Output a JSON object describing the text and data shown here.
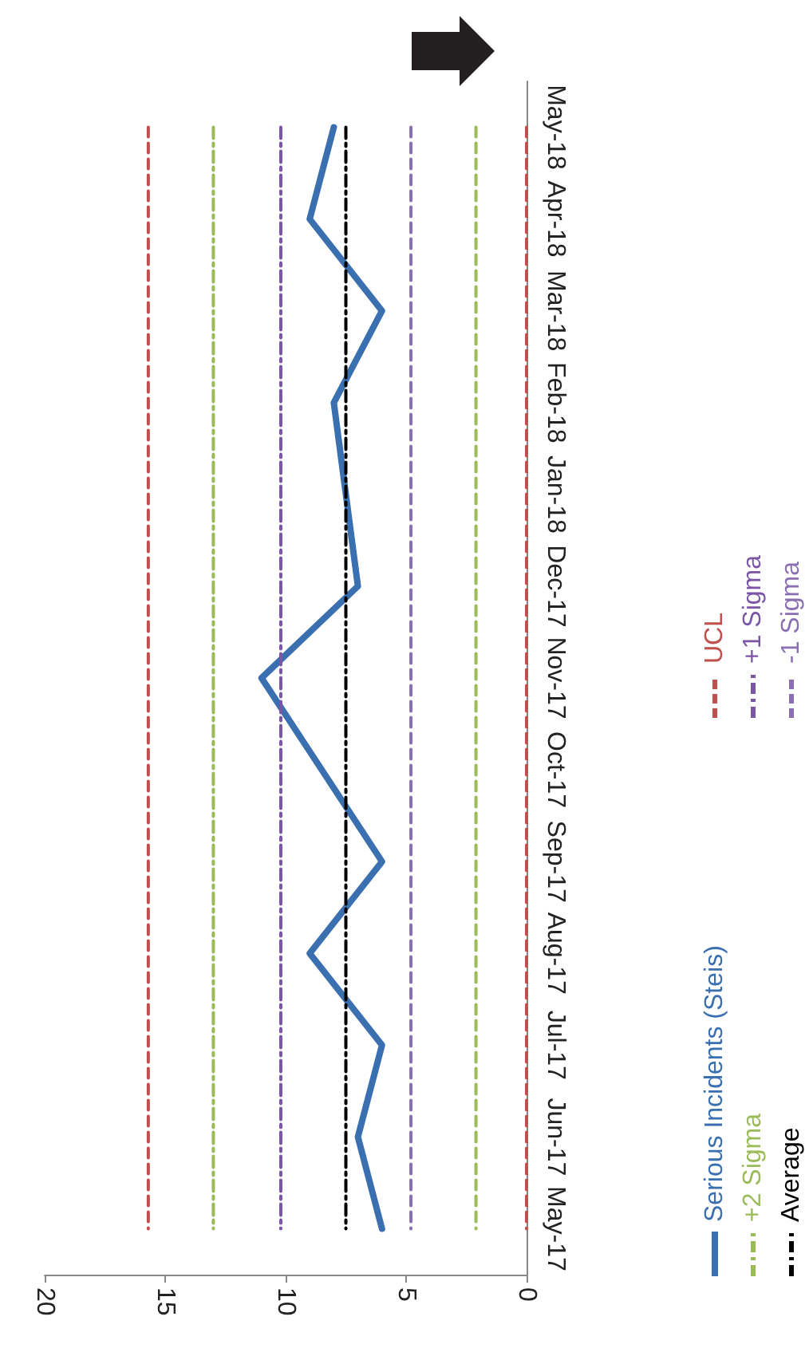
{
  "chart_data": {
    "type": "line",
    "orientation": "horizontal",
    "categories": [
      "May-18",
      "Apr-18",
      "Mar-18",
      "Feb-18",
      "Jan-18",
      "Dec-17",
      "Nov-17",
      "Oct-17",
      "Sep-17",
      "Aug-17",
      "Jul-17",
      "Jun-17",
      "May-17"
    ],
    "xlim": [
      20,
      0
    ],
    "xticks": [
      20,
      15,
      10,
      5,
      0
    ],
    "grid": false,
    "legend": "right",
    "marker": "none",
    "series": [
      {
        "name": "Serious Incidents (Steis)",
        "color": "#3a6fb0",
        "line_style": "solid",
        "values": [
          8,
          9,
          6,
          8,
          7.5,
          7,
          11,
          8.5,
          6,
          9,
          6,
          7,
          6
        ]
      },
      {
        "name": "UCL",
        "color": "#c0504d",
        "line_style": "dashed",
        "values": [
          15.7,
          15.7,
          15.7,
          15.7,
          15.7,
          15.7,
          15.7,
          15.7,
          15.7,
          15.7,
          15.7,
          15.7,
          15.7
        ]
      },
      {
        "name": "+2 Sigma",
        "color": "#9bbb59",
        "line_style": "dashdot",
        "values": [
          13,
          13,
          13,
          13,
          13,
          13,
          13,
          13,
          13,
          13,
          13,
          13,
          13
        ]
      },
      {
        "name": "+1 Sigma",
        "color": "#7b55a6",
        "line_style": "dashdot",
        "values": [
          10.2,
          10.2,
          10.2,
          10.2,
          10.2,
          10.2,
          10.2,
          10.2,
          10.2,
          10.2,
          10.2,
          10.2,
          10.2
        ]
      },
      {
        "name": "Average",
        "color": "#000000",
        "line_style": "dashdot",
        "values": [
          7.5,
          7.5,
          7.5,
          7.5,
          7.5,
          7.5,
          7.5,
          7.5,
          7.5,
          7.5,
          7.5,
          7.5,
          7.5
        ]
      },
      {
        "name": "-1 Sigma",
        "color": "#8a70b2",
        "line_style": "dashed",
        "values": [
          4.8,
          4.8,
          4.8,
          4.8,
          4.8,
          4.8,
          4.8,
          4.8,
          4.8,
          4.8,
          4.8,
          4.8,
          4.8
        ]
      },
      {
        "color": "#9bbb59",
        "line_style": "dashed",
        "values": [
          2.1,
          2.1,
          2.1,
          2.1,
          2.1,
          2.1,
          2.1,
          2.1,
          2.1,
          2.1,
          2.1,
          2.1,
          2.1
        ]
      },
      {
        "color": "#c0504d",
        "line_style": "dashed",
        "values": [
          0,
          0,
          0,
          0,
          0,
          0,
          0,
          0,
          0,
          0,
          0,
          0,
          0
        ]
      }
    ]
  }
}
